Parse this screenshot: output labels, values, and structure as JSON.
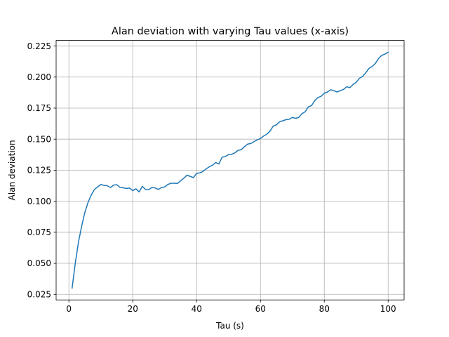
{
  "chart_data": {
    "type": "line",
    "title": "Alan deviation with varying Tau values (x-axis)",
    "xlabel": "Tau (s)",
    "ylabel": "Alan deviation",
    "xlim": [
      -4.0,
      105.0
    ],
    "ylim": [
      0.0205,
      0.2295
    ],
    "xticks": [
      0,
      20,
      40,
      60,
      80,
      100
    ],
    "xtick_labels": [
      "0",
      "20",
      "40",
      "60",
      "80",
      "100"
    ],
    "yticks": [
      0.025,
      0.05,
      0.075,
      0.1,
      0.125,
      0.15,
      0.175,
      0.2,
      0.225
    ],
    "ytick_labels": [
      "0.025",
      "0.050",
      "0.075",
      "0.100",
      "0.125",
      "0.150",
      "0.175",
      "0.200",
      "0.225"
    ],
    "grid": true,
    "series_color": "#1f77b4",
    "series": [
      {
        "x": [
          1,
          2,
          3,
          4,
          5,
          6,
          7,
          8,
          9,
          10,
          11,
          12,
          13,
          14,
          15,
          16,
          17,
          18,
          19,
          20,
          21,
          22,
          23,
          24,
          25,
          26,
          27,
          28,
          29,
          30,
          31,
          32,
          33,
          34,
          35,
          36,
          37,
          38,
          39,
          40,
          41,
          42,
          43,
          44,
          45,
          46,
          47,
          48,
          49,
          50,
          51,
          52,
          53,
          54,
          55,
          56,
          57,
          58,
          59,
          60,
          61,
          62,
          63,
          64,
          65,
          66,
          67,
          68,
          69,
          70,
          71,
          72,
          73,
          74,
          75,
          76,
          77,
          78,
          79,
          80,
          81,
          82,
          83,
          84,
          85,
          86,
          87,
          88,
          89,
          90,
          91,
          92,
          93,
          94,
          95,
          96,
          97,
          98,
          99,
          100
        ],
        "y": [
          0.03,
          0.05,
          0.067,
          0.08,
          0.091,
          0.099,
          0.105,
          0.1095,
          0.1115,
          0.1135,
          0.1128,
          0.1125,
          0.111,
          0.113,
          0.1133,
          0.1112,
          0.1108,
          0.1103,
          0.1106,
          0.1085,
          0.11,
          0.1075,
          0.112,
          0.1095,
          0.1093,
          0.111,
          0.1107,
          0.1095,
          0.111,
          0.1115,
          0.1135,
          0.1145,
          0.1145,
          0.1143,
          0.1165,
          0.1185,
          0.121,
          0.12,
          0.119,
          0.1225,
          0.1228,
          0.124,
          0.126,
          0.1278,
          0.129,
          0.1312,
          0.13,
          0.1355,
          0.136,
          0.1375,
          0.1378,
          0.139,
          0.141,
          0.1415,
          0.144,
          0.146,
          0.1465,
          0.148,
          0.1495,
          0.1505,
          0.1525,
          0.154,
          0.1565,
          0.1605,
          0.1615,
          0.164,
          0.1648,
          0.1657,
          0.166,
          0.1675,
          0.1668,
          0.1675,
          0.1705,
          0.172,
          0.176,
          0.177,
          0.181,
          0.1835,
          0.1845,
          0.187,
          0.188,
          0.1898,
          0.189,
          0.188,
          0.189,
          0.19,
          0.1922,
          0.1915,
          0.194,
          0.1958,
          0.199,
          0.2005,
          0.2035,
          0.207,
          0.2085,
          0.211,
          0.215,
          0.2175,
          0.2185,
          0.22
        ]
      }
    ]
  }
}
